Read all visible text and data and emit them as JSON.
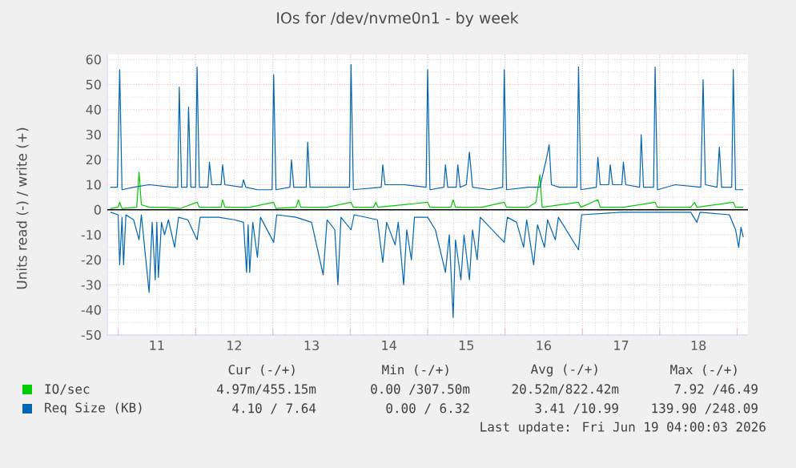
{
  "chart_data": {
    "type": "line",
    "title": "IOs for /dev/nvme0n1 - by week",
    "ylabel": "Units read (-) / write (+)",
    "xlim": [
      10.36,
      18.64
    ],
    "ylim": [
      -50,
      62
    ],
    "xticks": [
      {
        "value": 10.5,
        "label": null
      },
      11,
      {
        "value": 11.5,
        "label": null
      },
      12,
      {
        "value": 12.5,
        "label": null
      },
      13,
      {
        "value": 13.5,
        "label": null
      },
      14,
      {
        "value": 14.5,
        "label": null
      },
      15,
      {
        "value": 15.5,
        "label": null
      },
      16,
      {
        "value": 16.5,
        "label": null
      },
      17,
      {
        "value": 17.5,
        "label": null
      },
      18,
      {
        "value": 18.5,
        "label": null
      }
    ],
    "yticks": [
      -50,
      -40,
      -30,
      -20,
      -10,
      0,
      10,
      20,
      30,
      40,
      50,
      60
    ],
    "grid": true,
    "legend": "bottom",
    "ref_lines": [
      {
        "axis": "y",
        "value": 0,
        "color": "#000000"
      }
    ],
    "annotations": [
      "Cur (-/+)",
      "Min (-/+)",
      "Avg (-/+)",
      "Max (-/+)",
      "4.97m/455.15m",
      "0.00 /307.50m",
      "20.52m/822.42m",
      "7.92 /46.49",
      "4.10 / 7.64",
      "0.00 / 6.32",
      "3.41 /10.99",
      "139.90 /248.09",
      "Last update: Fri Jun 19 04:00:03 2026"
    ],
    "series": [
      {
        "name": "IO/sec",
        "color": "#00cc00",
        "x": [
          10.4,
          10.5,
          10.52,
          10.55,
          10.74,
          10.77,
          10.8,
          10.9,
          11.1,
          11.3,
          11.52,
          11.55,
          11.83,
          11.85,
          11.88,
          12.2,
          12.51,
          12.54,
          12.8,
          12.83,
          12.86,
          13.2,
          13.51,
          13.54,
          13.8,
          13.83,
          13.86,
          14.5,
          14.53,
          14.8,
          14.83,
          14.86,
          15.2,
          15.49,
          15.52,
          15.8,
          15.9,
          15.95,
          15.98,
          16.45,
          16.48,
          16.7,
          16.73,
          17.03,
          17.44,
          17.47,
          17.9,
          17.95,
          17.98,
          18.45,
          18.48,
          18.58
        ],
        "values": [
          0.5,
          1,
          3,
          0.5,
          1,
          15,
          2,
          1,
          1,
          0.5,
          3,
          1,
          1,
          4,
          1,
          1,
          3,
          0.5,
          1,
          4,
          1,
          1,
          3,
          1,
          1,
          3,
          1,
          3,
          1,
          1,
          4,
          1,
          1,
          3,
          1,
          1,
          3,
          14,
          1,
          3,
          1,
          4,
          1,
          1,
          3,
          1,
          1,
          3,
          1,
          3,
          1,
          1
        ]
      },
      {
        "name": "Req Size (KB)",
        "color": "#0066b3",
        "x": [
          10.4,
          10.49,
          10.52,
          10.55,
          10.7,
          10.9,
          11.2,
          11.27,
          11.29,
          11.32,
          11.39,
          11.41,
          11.44,
          11.5,
          11.52,
          11.55,
          11.66,
          11.68,
          11.71,
          11.83,
          11.85,
          11.88,
          12.1,
          12.12,
          12.15,
          12.3,
          12.49,
          12.51,
          12.54,
          12.72,
          12.74,
          12.77,
          12.93,
          12.95,
          12.98,
          13.3,
          13.49,
          13.51,
          13.54,
          13.9,
          13.92,
          13.95,
          14.2,
          14.48,
          14.5,
          14.53,
          14.71,
          14.73,
          14.76,
          14.87,
          14.89,
          14.92,
          15.0,
          15.04,
          15.08,
          15.3,
          15.47,
          15.49,
          15.52,
          15.8,
          15.95,
          16.04,
          16.07,
          16.1,
          16.2,
          16.43,
          16.45,
          16.48,
          16.68,
          16.7,
          16.73,
          16.84,
          16.86,
          16.89,
          17.01,
          17.03,
          17.06,
          17.24,
          17.26,
          17.29,
          17.42,
          17.44,
          17.47,
          17.7,
          18.03,
          18.06,
          18.09,
          18.24,
          18.27,
          18.3,
          18.43,
          18.45,
          18.48,
          18.58
        ],
        "values": [
          9,
          9,
          56,
          8,
          9,
          10,
          9,
          9,
          49,
          9,
          9,
          41,
          9,
          9,
          57,
          9,
          9,
          19,
          10,
          10,
          18,
          10,
          9,
          12,
          9,
          8,
          8,
          54,
          8,
          9,
          20,
          9,
          9,
          27,
          9,
          9,
          9,
          58,
          8,
          9,
          18,
          10,
          10,
          9,
          56,
          8,
          9,
          18,
          9,
          9,
          18,
          9,
          10,
          23,
          9,
          8,
          9,
          56,
          8,
          9,
          9,
          21,
          26,
          10,
          9,
          9,
          57,
          8,
          9,
          21,
          10,
          10,
          18,
          10,
          10,
          19,
          10,
          9,
          30,
          9,
          9,
          57,
          8,
          10,
          9,
          52,
          10,
          9,
          25,
          9,
          9,
          56,
          8,
          8
        ]
      },
      {
        "color": "#0066b3",
        "x": [
          10.4,
          10.5,
          10.52,
          10.55,
          10.57,
          10.6,
          10.7,
          10.77,
          10.8,
          10.9,
          10.94,
          10.98,
          11.0,
          11.02,
          11.06,
          11.1,
          11.15,
          11.23,
          11.28,
          11.4,
          11.52,
          11.56,
          11.8,
          12.0,
          12.12,
          12.16,
          12.18,
          12.2,
          12.24,
          12.3,
          12.34,
          12.51,
          12.55,
          12.8,
          13.0,
          13.15,
          13.2,
          13.3,
          13.34,
          13.38,
          13.51,
          13.55,
          13.85,
          13.92,
          13.97,
          14.08,
          14.12,
          14.19,
          14.23,
          14.29,
          14.33,
          14.5,
          14.6,
          14.73,
          14.78,
          14.81,
          14.83,
          14.86,
          14.93,
          14.97,
          15.04,
          15.08,
          15.14,
          15.18,
          15.49,
          15.53,
          15.65,
          15.74,
          15.78,
          15.87,
          15.92,
          16.01,
          16.05,
          16.15,
          16.19,
          16.45,
          16.49,
          17.0,
          17.5,
          17.9,
          17.98,
          18.02,
          18.4,
          18.48,
          18.52,
          18.55,
          18.58
        ],
        "values": [
          -1,
          -2,
          -22,
          -3,
          -22,
          -2,
          -4,
          -12,
          -2,
          -33,
          -5,
          -28,
          -5,
          -27,
          -5,
          -10,
          -4,
          -15,
          -3,
          -4,
          -12,
          -3,
          -3,
          -4,
          -5,
          -25,
          -6,
          -25,
          -5,
          -19,
          -3,
          -13,
          -2,
          -3,
          -5,
          -26,
          -4,
          -8,
          -30,
          -3,
          -8,
          -2,
          -4,
          -21,
          -5,
          -14,
          -5,
          -30,
          -8,
          -20,
          -3,
          -3,
          -8,
          -25,
          -10,
          -30,
          -43,
          -12,
          -28,
          -10,
          -28,
          -8,
          -20,
          -3,
          -13,
          -3,
          -5,
          -15,
          -4,
          -22,
          -6,
          -15,
          -4,
          -12,
          -3,
          -16,
          -2,
          -1,
          -1,
          -1,
          -5,
          -1,
          -2,
          -8,
          -15,
          -7,
          -11
        ]
      }
    ]
  }
}
